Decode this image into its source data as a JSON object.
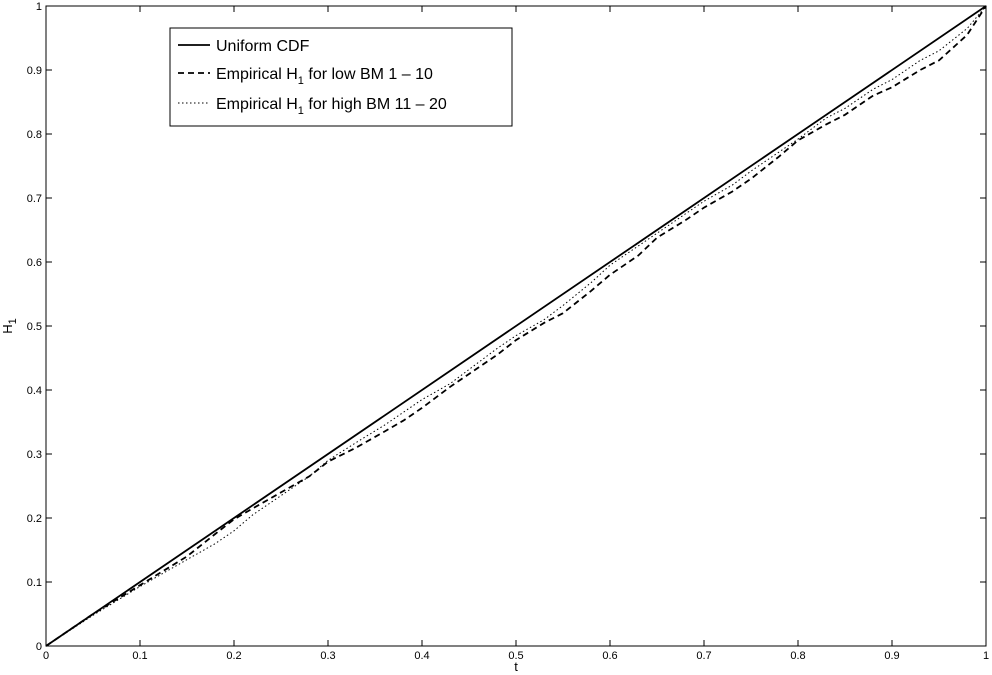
{
  "chart_data": {
    "type": "line",
    "title": "",
    "xlabel": "t",
    "ylabel_main": "H",
    "ylabel_sub": "1",
    "xlim": [
      0,
      1
    ],
    "ylim": [
      0,
      1
    ],
    "x_ticks": [
      "0",
      "0.1",
      "0.2",
      "0.3",
      "0.4",
      "0.5",
      "0.6",
      "0.7",
      "0.8",
      "0.9",
      "1"
    ],
    "y_ticks": [
      "0",
      "0.1",
      "0.2",
      "0.3",
      "0.4",
      "0.5",
      "0.6",
      "0.7",
      "0.8",
      "0.9",
      "1"
    ],
    "grid": false,
    "legend_position": "top-left",
    "series": [
      {
        "name": "Uniform CDF",
        "legend": {
          "pre": "Uniform CDF",
          "sub": "",
          "post": ""
        },
        "style": "solid",
        "color": "#000000",
        "x": [
          0,
          1
        ],
        "y": [
          0,
          1
        ]
      },
      {
        "name": "Empirical H1 for low BM 1 – 10",
        "legend": {
          "pre": "Empirical H",
          "sub": "1",
          "post": " for low BM 1 – 10"
        },
        "style": "dashed",
        "color": "#000000",
        "x": [
          0,
          0.05,
          0.1,
          0.15,
          0.18,
          0.2,
          0.22,
          0.25,
          0.28,
          0.3,
          0.33,
          0.36,
          0.38,
          0.4,
          0.43,
          0.45,
          0.48,
          0.5,
          0.53,
          0.55,
          0.58,
          0.6,
          0.63,
          0.65,
          0.68,
          0.7,
          0.73,
          0.75,
          0.78,
          0.8,
          0.83,
          0.85,
          0.88,
          0.9,
          0.93,
          0.95,
          0.98,
          1.0
        ],
        "y": [
          0,
          0.05,
          0.095,
          0.14,
          0.175,
          0.198,
          0.215,
          0.24,
          0.265,
          0.288,
          0.31,
          0.335,
          0.352,
          0.372,
          0.405,
          0.425,
          0.455,
          0.478,
          0.505,
          0.52,
          0.555,
          0.58,
          0.61,
          0.638,
          0.665,
          0.685,
          0.71,
          0.73,
          0.765,
          0.79,
          0.815,
          0.83,
          0.86,
          0.873,
          0.9,
          0.915,
          0.955,
          1.0
        ]
      },
      {
        "name": "Empirical H1 for high BM 11 – 20",
        "legend": {
          "pre": "Empirical H",
          "sub": "1",
          "post": " for high BM 11 – 20"
        },
        "style": "dotted",
        "color": "#000000",
        "x": [
          0,
          0.05,
          0.1,
          0.15,
          0.18,
          0.2,
          0.22,
          0.25,
          0.28,
          0.3,
          0.33,
          0.36,
          0.38,
          0.4,
          0.43,
          0.45,
          0.48,
          0.5,
          0.53,
          0.55,
          0.58,
          0.6,
          0.63,
          0.65,
          0.68,
          0.7,
          0.73,
          0.75,
          0.78,
          0.8,
          0.83,
          0.85,
          0.88,
          0.9,
          0.93,
          0.95,
          0.98,
          1.0
        ],
        "y": [
          0,
          0.048,
          0.093,
          0.135,
          0.16,
          0.18,
          0.205,
          0.235,
          0.265,
          0.29,
          0.318,
          0.345,
          0.365,
          0.385,
          0.41,
          0.432,
          0.465,
          0.485,
          0.51,
          0.532,
          0.568,
          0.595,
          0.625,
          0.645,
          0.675,
          0.695,
          0.72,
          0.742,
          0.772,
          0.792,
          0.825,
          0.84,
          0.87,
          0.885,
          0.915,
          0.93,
          0.965,
          1.0
        ]
      }
    ]
  }
}
